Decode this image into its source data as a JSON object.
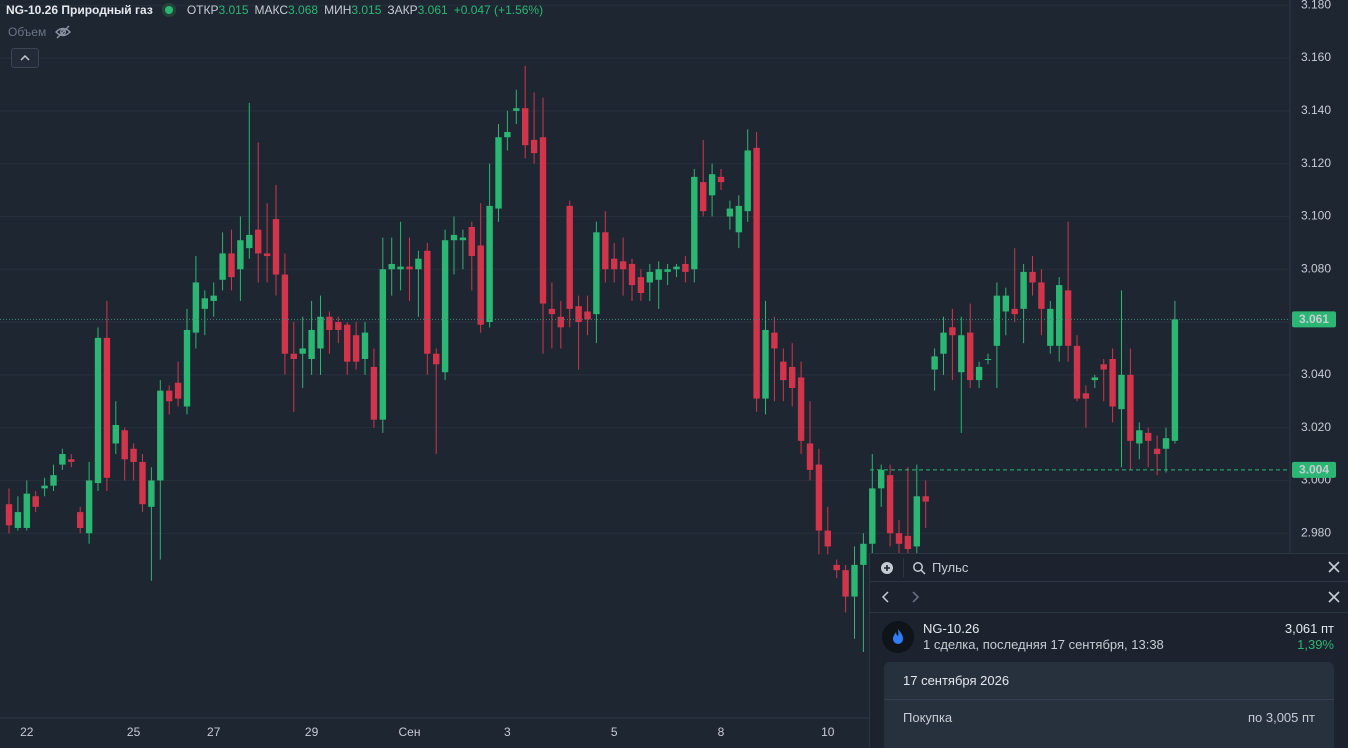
{
  "chart_data": {
    "type": "candlestick",
    "title": "NG-10.26 Природный газ",
    "volume_label": "Объем",
    "ohlc_labels": [
      {
        "label": "ОТКР",
        "value": 3.015
      },
      {
        "label": "МАКС",
        "value": 3.068
      },
      {
        "label": "МИН",
        "value": 3.015
      },
      {
        "label": "ЗАКР",
        "value": 3.061
      }
    ],
    "change": "+0.047 (+1.56%)",
    "up_color": "#2bb673",
    "down_color": "#d2354b",
    "categories": [
      null,
      null,
      "22",
      null,
      null,
      null,
      null,
      null,
      null,
      null,
      null,
      null,
      null,
      null,
      "25",
      null,
      null,
      null,
      null,
      null,
      null,
      null,
      null,
      "27",
      null,
      null,
      null,
      null,
      null,
      null,
      null,
      null,
      null,
      null,
      "29",
      null,
      null,
      null,
      null,
      null,
      null,
      null,
      null,
      null,
      null,
      "Сен",
      null,
      null,
      null,
      null,
      null,
      null,
      null,
      null,
      null,
      null,
      "3",
      null,
      null,
      null,
      null,
      null,
      null,
      null,
      null,
      null,
      null,
      null,
      "5",
      null,
      null,
      null,
      null,
      null,
      null,
      null,
      null,
      null,
      null,
      null,
      "8",
      null,
      null,
      null,
      null,
      null,
      null,
      null,
      null,
      null,
      null,
      null,
      "10",
      null,
      null,
      null,
      null,
      null,
      null,
      null,
      null,
      null,
      null,
      null,
      null,
      null,
      null,
      null,
      null,
      null,
      null,
      null,
      null,
      null,
      null,
      null,
      null,
      null,
      null,
      null,
      null,
      null,
      null,
      null,
      null,
      null,
      null,
      null,
      null,
      null,
      null,
      null
    ],
    "open": [
      2.991,
      2.982,
      2.982,
      2.994,
      2.997,
      2.998,
      3.006,
      3.008,
      2.988,
      2.98,
      2.999,
      3.054,
      3.014,
      3.019,
      3.012,
      3.007,
      2.99,
      3.0,
      3.034,
      3.037,
      3.028,
      3.056,
      3.065,
      3.068,
      3.076,
      3.086,
      3.08,
      3.088,
      3.095,
      3.086,
      3.099,
      3.078,
      3.048,
      3.048,
      3.046,
      3.05,
      3.062,
      3.06,
      3.059,
      3.055,
      3.046,
      3.043,
      3.023,
      3.08,
      3.08,
      3.081,
      3.08,
      3.087,
      3.048,
      3.041,
      3.091,
      3.091,
      3.096,
      3.089,
      3.06,
      3.103,
      3.13,
      3.14,
      3.141,
      3.129,
      3.13,
      3.065,
      3.062,
      3.104,
      3.066,
      3.064,
      3.063,
      3.094,
      3.084,
      3.083,
      3.082,
      3.077,
      3.075,
      3.076,
      3.079,
      3.08,
      3.082,
      3.08,
      3.113,
      3.108,
      3.115,
      3.1,
      3.094,
      3.102,
      3.126,
      3.031,
      3.056,
      3.045,
      3.043,
      3.039,
      3.014,
      3.006,
      2.981,
      2.968,
      2.966,
      2.956,
      2.968,
      2.976,
      2.997,
      3.002,
      2.98,
      2.979,
      2.975,
      2.994,
      3.042,
      3.048,
      3.058,
      3.041,
      3.056,
      3.038,
      3.046,
      3.051,
      3.064,
      3.065,
      3.065,
      3.079,
      3.075,
      3.051,
      3.051,
      3.072,
      3.051,
      3.033,
      3.038,
      3.044,
      3.046,
      3.027,
      3.04,
      3.014,
      3.018,
      3.012,
      3.012,
      3.015
    ],
    "high": [
      2.997,
      2.994,
      3.0,
      2.996,
      3.001,
      3.006,
      3.012,
      3.01,
      2.99,
      3.007,
      3.058,
      3.068,
      3.03,
      3.02,
      3.014,
      3.01,
      3.005,
      3.038,
      3.036,
      3.045,
      3.065,
      3.085,
      3.072,
      3.075,
      3.094,
      3.095,
      3.1,
      3.143,
      3.128,
      3.105,
      3.112,
      3.086,
      3.06,
      3.062,
      3.068,
      3.07,
      3.064,
      3.062,
      3.06,
      3.06,
      3.06,
      3.05,
      3.092,
      3.092,
      3.098,
      3.092,
      3.087,
      3.09,
      3.05,
      3.095,
      3.1,
      3.095,
      3.098,
      3.105,
      3.12,
      3.135,
      3.14,
      3.148,
      3.157,
      3.147,
      3.145,
      3.075,
      3.068,
      3.106,
      3.07,
      3.07,
      3.098,
      3.102,
      3.09,
      3.092,
      3.084,
      3.08,
      3.082,
      3.083,
      3.082,
      3.082,
      3.085,
      3.118,
      3.129,
      3.12,
      3.118,
      3.106,
      3.108,
      3.133,
      3.132,
      3.068,
      3.062,
      3.05,
      3.052,
      3.045,
      3.03,
      3.012,
      2.99,
      2.97,
      2.968,
      2.975,
      2.98,
      3.01,
      3.006,
      3.006,
      2.985,
      3.005,
      3.006,
      3.0,
      3.05,
      3.062,
      3.065,
      3.062,
      3.067,
      3.045,
      3.048,
      3.075,
      3.073,
      3.088,
      3.082,
      3.085,
      3.08,
      3.068,
      3.077,
      3.098,
      3.055,
      3.036,
      3.04,
      3.046,
      3.05,
      3.072,
      3.05,
      3.022,
      3.02,
      3.017,
      3.02,
      3.068
    ],
    "low": [
      2.98,
      2.981,
      2.981,
      2.988,
      2.994,
      2.996,
      3.004,
      3.005,
      2.98,
      2.976,
      2.996,
      2.996,
      3.01,
      3.0,
      3.0,
      2.988,
      2.962,
      2.97,
      3.025,
      3.028,
      3.025,
      3.05,
      3.055,
      3.062,
      3.072,
      3.072,
      3.068,
      3.084,
      3.075,
      3.075,
      3.07,
      3.04,
      3.026,
      3.035,
      3.04,
      3.04,
      3.048,
      3.052,
      3.04,
      3.042,
      3.04,
      3.02,
      3.018,
      3.07,
      3.072,
      3.068,
      3.062,
      3.04,
      3.01,
      3.038,
      3.078,
      3.08,
      3.072,
      3.056,
      3.058,
      3.098,
      3.125,
      3.135,
      3.122,
      3.12,
      3.048,
      3.05,
      3.05,
      3.058,
      3.042,
      3.055,
      3.052,
      3.075,
      3.075,
      3.07,
      3.068,
      3.068,
      3.068,
      3.065,
      3.074,
      3.077,
      3.075,
      3.075,
      3.1,
      3.1,
      3.11,
      3.095,
      3.088,
      3.098,
      3.026,
      3.025,
      3.03,
      3.03,
      3.028,
      3.01,
      3.0,
      2.972,
      2.972,
      2.963,
      2.95,
      2.94,
      2.935,
      2.965,
      2.99,
      2.975,
      2.97,
      2.97,
      2.97,
      2.982,
      3.034,
      3.04,
      3.038,
      3.018,
      3.035,
      3.035,
      3.044,
      3.035,
      3.055,
      3.06,
      3.052,
      3.07,
      3.055,
      3.048,
      3.045,
      3.045,
      3.03,
      3.02,
      3.035,
      3.03,
      3.022,
      3.005,
      3.004,
      3.008,
      3.005,
      3.002,
      3.003,
      3.014
    ],
    "close": [
      2.983,
      2.988,
      2.995,
      2.99,
      2.998,
      3.002,
      3.01,
      3.007,
      2.982,
      3.0,
      3.054,
      3.001,
      3.021,
      3.008,
      3.007,
      2.991,
      3.0,
      3.034,
      3.03,
      3.031,
      3.057,
      3.075,
      3.069,
      3.07,
      3.086,
      3.077,
      3.091,
      3.093,
      3.086,
      3.085,
      3.078,
      3.048,
      3.046,
      3.05,
      3.057,
      3.062,
      3.057,
      3.057,
      3.045,
      3.045,
      3.056,
      3.023,
      3.08,
      3.082,
      3.081,
      3.08,
      3.084,
      3.048,
      3.044,
      3.091,
      3.093,
      3.092,
      3.085,
      3.059,
      3.104,
      3.13,
      3.132,
      3.141,
      3.127,
      3.124,
      3.067,
      3.063,
      3.058,
      3.065,
      3.06,
      3.061,
      3.094,
      3.08,
      3.08,
      3.08,
      3.074,
      3.071,
      3.079,
      3.08,
      3.08,
      3.081,
      3.079,
      3.115,
      3.102,
      3.116,
      3.113,
      3.103,
      3.104,
      3.125,
      3.031,
      3.057,
      3.05,
      3.038,
      3.035,
      3.015,
      3.004,
      2.981,
      2.975,
      2.966,
      2.956,
      2.968,
      2.976,
      2.997,
      3.004,
      2.98,
      2.976,
      2.974,
      2.994,
      2.992,
      3.047,
      3.056,
      3.055,
      3.055,
      3.038,
      3.043,
      3.046,
      3.07,
      3.07,
      3.063,
      3.079,
      3.075,
      3.065,
      3.065,
      3.074,
      3.051,
      3.031,
      3.031,
      3.039,
      3.042,
      3.028,
      3.04,
      3.015,
      3.019,
      3.015,
      3.01,
      3.016,
      3.061
    ],
    "ylim": [
      2.91,
      3.182
    ],
    "yticks": [
      {
        "value": 2.98,
        "label": "2.980"
      },
      {
        "value": 3.0,
        "label": "3.000"
      },
      {
        "value": 3.02,
        "label": "3.020"
      },
      {
        "value": 3.04,
        "label": "3.040"
      },
      {
        "value": 3.06,
        "label": "3.060"
      },
      {
        "value": 3.08,
        "label": "3.080"
      },
      {
        "value": 3.1,
        "label": "3.100"
      },
      {
        "value": 3.12,
        "label": "3.120"
      },
      {
        "value": 3.14,
        "label": "3.140"
      },
      {
        "value": 3.16,
        "label": "3.160"
      },
      {
        "value": 3.18,
        "label": "3.180"
      }
    ],
    "grid": true,
    "price_lines": [
      {
        "value": 3.061,
        "style": "dotted"
      },
      {
        "value": 3.004,
        "style": "dashed"
      }
    ]
  },
  "pulse_panel": {
    "search_placeholder": "Пульс",
    "instrument": "NG-10.26",
    "subtitle": "1 сделка, последняя 17 сентября, 13:38",
    "price": "3,061 пт",
    "change": "1,39%",
    "date": "17 сентября 2026",
    "action": "Покупка",
    "action_price": "по 3,005 пт"
  }
}
